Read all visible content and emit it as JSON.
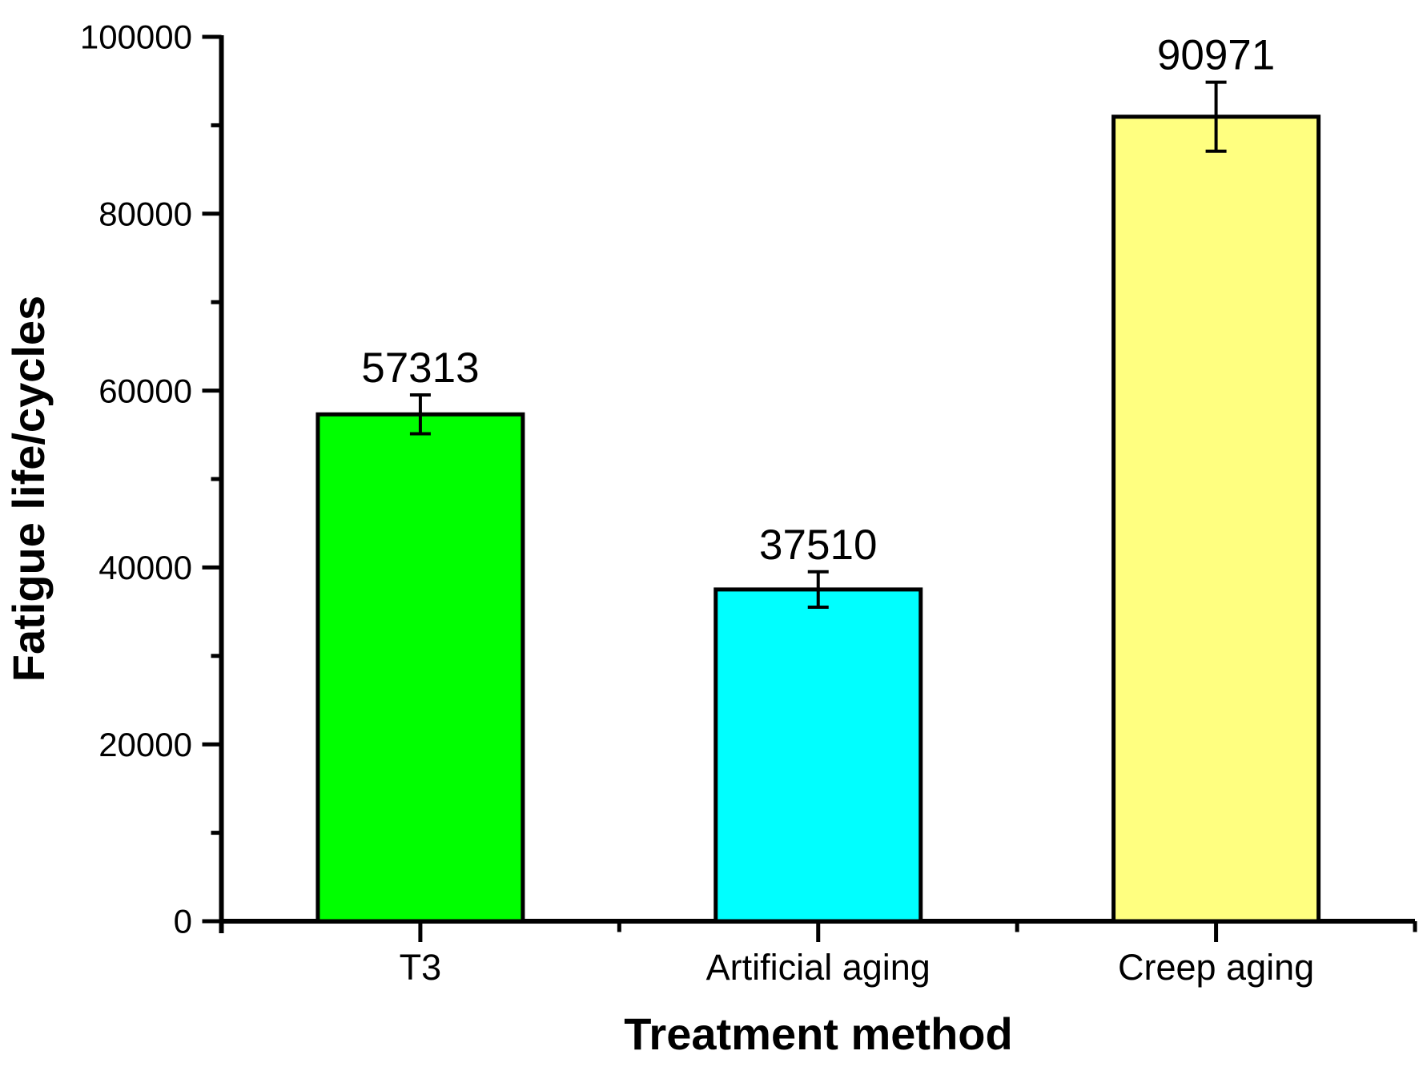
{
  "chart_data": {
    "type": "bar",
    "title": "",
    "xlabel": "Treatment method",
    "ylabel": "Fatigue life/cycles",
    "categories": [
      "T3",
      "Artificial aging",
      "Creep aging"
    ],
    "values": [
      57313,
      37510,
      90971
    ],
    "value_labels": [
      "57313",
      "37510",
      "90971"
    ],
    "error_bars": [
      2200,
      2000,
      3900
    ],
    "bar_colors": [
      "#00ff00",
      "#00ffff",
      "#ffff80"
    ],
    "bar_edge_color": "#000000",
    "axis_color": "#000000",
    "background_color": "#ffffff",
    "ylim": [
      0,
      100000
    ],
    "ytick_step": 20000,
    "yminor_step": 10000,
    "ytick_labels": [
      "0",
      "20000",
      "40000",
      "60000",
      "80000",
      "100000"
    ],
    "grid": false,
    "legend": "none"
  }
}
